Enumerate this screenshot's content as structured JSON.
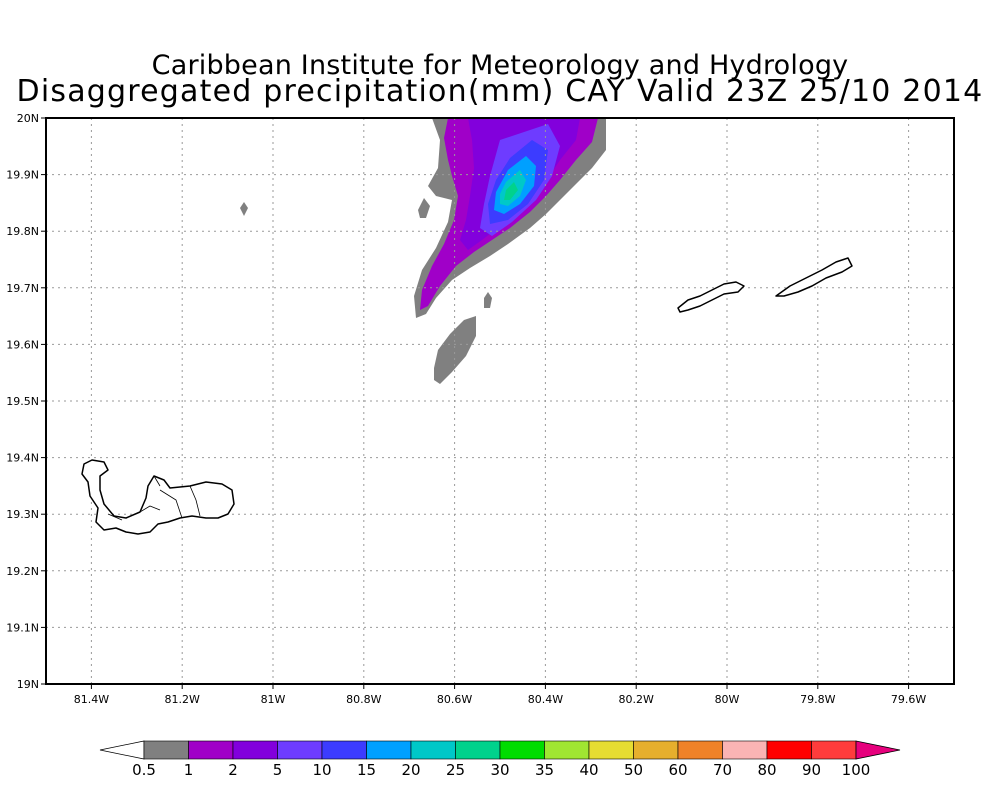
{
  "header": {
    "title": "Caribbean Institute for Meteorology and Hydrology",
    "subtitle": "Disaggregated precipitation(mm) CAY Valid 23Z 25/10 2014"
  },
  "map": {
    "lon_range": [
      -81.5,
      -79.5
    ],
    "lat_range": [
      19.0,
      20.0
    ],
    "x_ticks": [
      {
        "lon": -81.4,
        "label": "81.4W"
      },
      {
        "lon": -81.2,
        "label": "81.2W"
      },
      {
        "lon": -81.0,
        "label": "81W"
      },
      {
        "lon": -80.8,
        "label": "80.8W"
      },
      {
        "lon": -80.6,
        "label": "80.6W"
      },
      {
        "lon": -80.4,
        "label": "80.4W"
      },
      {
        "lon": -80.2,
        "label": "80.2W"
      },
      {
        "lon": -80.0,
        "label": "80W"
      },
      {
        "lon": -79.8,
        "label": "79.8W"
      },
      {
        "lon": -79.6,
        "label": "79.6W"
      }
    ],
    "y_ticks": [
      {
        "lat": 20.0,
        "label": "20N"
      },
      {
        "lat": 19.9,
        "label": "19.9N"
      },
      {
        "lat": 19.8,
        "label": "19.8N"
      },
      {
        "lat": 19.7,
        "label": "19.7N"
      },
      {
        "lat": 19.6,
        "label": "19.6N"
      },
      {
        "lat": 19.5,
        "label": "19.5N"
      },
      {
        "lat": 19.4,
        "label": "19.4N"
      },
      {
        "lat": 19.3,
        "label": "19.3N"
      },
      {
        "lat": 19.2,
        "label": "19.2N"
      },
      {
        "lat": 19.1,
        "label": "19.1N"
      },
      {
        "lat": 19.0,
        "label": "19N"
      }
    ],
    "grid": true,
    "features": [
      "Grand Cayman",
      "Little Cayman",
      "Cayman Brac",
      "precipitation band"
    ]
  },
  "colorbar": {
    "labels": [
      "0.5",
      "1",
      "2",
      "5",
      "10",
      "15",
      "20",
      "25",
      "30",
      "35",
      "40",
      "50",
      "60",
      "70",
      "80",
      "90",
      "100"
    ],
    "colors": [
      "#ffffff",
      "#808080",
      "#a000c8",
      "#8200dc",
      "#6e3cff",
      "#3c3cff",
      "#00a0ff",
      "#00c8c8",
      "#00d28c",
      "#00dc00",
      "#a0e632",
      "#e6dc32",
      "#e6af2d",
      "#f08228",
      "#fab4b4",
      "#ff0000",
      "#ff3c3c",
      "#e6007d"
    ]
  }
}
